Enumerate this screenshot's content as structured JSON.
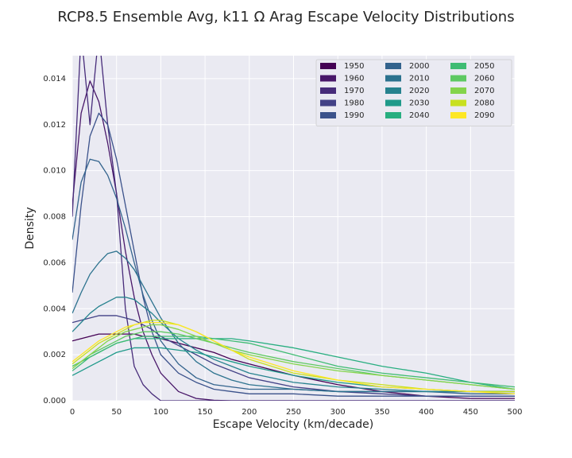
{
  "chart_data": {
    "type": "line",
    "title": "RCP8.5 Ensemble Avg, k11 Ω Arag Escape Velocity Distributions",
    "x_label": "Escape Velocity (km/decade)",
    "y_label": "Density",
    "x": [
      0,
      10,
      20,
      30,
      40,
      50,
      60,
      70,
      80,
      90,
      100,
      120,
      140,
      160,
      180,
      200,
      250,
      300,
      350,
      400,
      450,
      500
    ],
    "xlim": [
      0,
      500
    ],
    "xticks": [
      0,
      50,
      100,
      150,
      200,
      250,
      300,
      350,
      400,
      450,
      500
    ],
    "ylim": [
      0,
      0.015
    ],
    "yticks": [
      {
        "value": 0,
        "label": "0.000"
      },
      {
        "value": 0.002,
        "label": "0.002"
      },
      {
        "value": 0.004,
        "label": "0.004"
      },
      {
        "value": 0.006,
        "label": "0.006"
      },
      {
        "value": 0.008,
        "label": "0.008"
      },
      {
        "value": 0.01,
        "label": "0.010"
      },
      {
        "value": 0.012,
        "label": "0.012"
      },
      {
        "value": 0.014,
        "label": "0.014"
      }
    ],
    "grid": true,
    "legend": "upper right",
    "series": [
      {
        "name": "1950",
        "color": "#440154",
        "values": [
          0.0026,
          0.0027,
          0.0028,
          0.0029,
          0.0029,
          0.0029,
          0.0029,
          0.0029,
          0.0028,
          0.0028,
          0.0027,
          0.0025,
          0.0023,
          0.0021,
          0.0018,
          0.0016,
          0.0011,
          0.0007,
          0.0004,
          0.0002,
          0.0001,
          0.0001
        ]
      },
      {
        "name": "1960",
        "color": "#481769",
        "values": [
          0.0085,
          0.0125,
          0.0139,
          0.013,
          0.0112,
          0.009,
          0.0065,
          0.0045,
          0.003,
          0.002,
          0.0012,
          0.0004,
          0.0001,
          2e-05,
          0,
          0,
          0,
          0,
          0,
          0,
          0,
          0
        ]
      },
      {
        "name": "1970",
        "color": "#472c7a",
        "values": [
          0.008,
          0.016,
          0.012,
          0.016,
          0.012,
          0.009,
          0.004,
          0.0015,
          0.0007,
          0.0003,
          0,
          0,
          0,
          0,
          0,
          0,
          0,
          0,
          0,
          0,
          0,
          0
        ]
      },
      {
        "name": "1980",
        "color": "#424186",
        "values": [
          0.0034,
          0.0035,
          0.0036,
          0.0037,
          0.0037,
          0.0037,
          0.0036,
          0.0035,
          0.0033,
          0.0031,
          0.0028,
          0.0024,
          0.002,
          0.0016,
          0.0013,
          0.001,
          0.0006,
          0.0004,
          0.0003,
          0.0002,
          0.0002,
          0.0002
        ]
      },
      {
        "name": "1990",
        "color": "#3b528b",
        "values": [
          0.0047,
          0.0085,
          0.0115,
          0.0125,
          0.012,
          0.0105,
          0.0085,
          0.0065,
          0.0045,
          0.003,
          0.002,
          0.0012,
          0.0008,
          0.0005,
          0.0004,
          0.0003,
          0.0003,
          0.0002,
          0.0002,
          0.0002,
          0.0002,
          0.0002
        ]
      },
      {
        "name": "2000",
        "color": "#33638d",
        "values": [
          0.007,
          0.0095,
          0.0105,
          0.0104,
          0.0098,
          0.0088,
          0.0075,
          0.006,
          0.0046,
          0.0035,
          0.0026,
          0.0016,
          0.001,
          0.0007,
          0.0006,
          0.0005,
          0.0005,
          0.0004,
          0.0004,
          0.0004,
          0.0003,
          0.0003
        ]
      },
      {
        "name": "2010",
        "color": "#2c728e",
        "values": [
          0.0038,
          0.0047,
          0.0055,
          0.006,
          0.0064,
          0.0065,
          0.0062,
          0.0057,
          0.005,
          0.0043,
          0.0036,
          0.0025,
          0.0017,
          0.0012,
          0.0009,
          0.0007,
          0.0005,
          0.0004,
          0.0004,
          0.0004,
          0.0004,
          0.0004
        ]
      },
      {
        "name": "2020",
        "color": "#26828e",
        "values": [
          0.003,
          0.0034,
          0.0038,
          0.0041,
          0.0043,
          0.0045,
          0.0045,
          0.0044,
          0.0041,
          0.0038,
          0.0034,
          0.0027,
          0.0022,
          0.0018,
          0.0015,
          0.0012,
          0.0008,
          0.0006,
          0.0005,
          0.0004,
          0.0004,
          0.0004
        ]
      },
      {
        "name": "2030",
        "color": "#1f9a8a",
        "values": [
          0.0011,
          0.0013,
          0.0015,
          0.0017,
          0.0019,
          0.0021,
          0.0022,
          0.0023,
          0.0023,
          0.0023,
          0.0023,
          0.0022,
          0.0021,
          0.0019,
          0.0017,
          0.0015,
          0.0011,
          0.0008,
          0.0006,
          0.0005,
          0.0004,
          0.0004
        ]
      },
      {
        "name": "2040",
        "color": "#28ae80",
        "values": [
          0.0015,
          0.0017,
          0.0019,
          0.0021,
          0.0023,
          0.0025,
          0.0026,
          0.0027,
          0.0027,
          0.0027,
          0.0027,
          0.0027,
          0.0027,
          0.0027,
          0.0027,
          0.0026,
          0.0023,
          0.0019,
          0.0015,
          0.0012,
          0.0008,
          0.0005
        ]
      },
      {
        "name": "2050",
        "color": "#3fbc73",
        "values": [
          0.0013,
          0.0016,
          0.0019,
          0.0021,
          0.0023,
          0.0025,
          0.0026,
          0.0027,
          0.0028,
          0.0028,
          0.0028,
          0.0028,
          0.0028,
          0.0027,
          0.0026,
          0.0025,
          0.002,
          0.0015,
          0.0012,
          0.001,
          0.0008,
          0.0006
        ]
      },
      {
        "name": "2060",
        "color": "#5ec962",
        "values": [
          0.0015,
          0.0017,
          0.002,
          0.0022,
          0.0024,
          0.0026,
          0.0028,
          0.0029,
          0.003,
          0.003,
          0.003,
          0.0029,
          0.0027,
          0.0025,
          0.0023,
          0.0021,
          0.0017,
          0.0014,
          0.0011,
          0.0009,
          0.0007,
          0.0005
        ]
      },
      {
        "name": "2070",
        "color": "#84d44b",
        "values": [
          0.0014,
          0.0017,
          0.002,
          0.0023,
          0.0026,
          0.0028,
          0.003,
          0.0031,
          0.0032,
          0.0033,
          0.0033,
          0.0031,
          0.0028,
          0.0025,
          0.0022,
          0.002,
          0.0016,
          0.0013,
          0.0011,
          0.0009,
          0.0007,
          0.0005
        ]
      },
      {
        "name": "2080",
        "color": "#c8e020",
        "values": [
          0.0016,
          0.0019,
          0.0022,
          0.0025,
          0.0027,
          0.0029,
          0.0031,
          0.0033,
          0.0034,
          0.0035,
          0.0035,
          0.0033,
          0.003,
          0.0026,
          0.0022,
          0.0018,
          0.0012,
          0.0009,
          0.0007,
          0.0005,
          0.0004,
          0.0004
        ]
      },
      {
        "name": "2090",
        "color": "#fde725",
        "values": [
          0.0017,
          0.002,
          0.0023,
          0.0026,
          0.0028,
          0.003,
          0.0032,
          0.0033,
          0.0034,
          0.0034,
          0.0034,
          0.0033,
          0.003,
          0.0026,
          0.0022,
          0.0019,
          0.0013,
          0.0009,
          0.0006,
          0.0005,
          0.0004,
          0.0003
        ]
      }
    ]
  }
}
